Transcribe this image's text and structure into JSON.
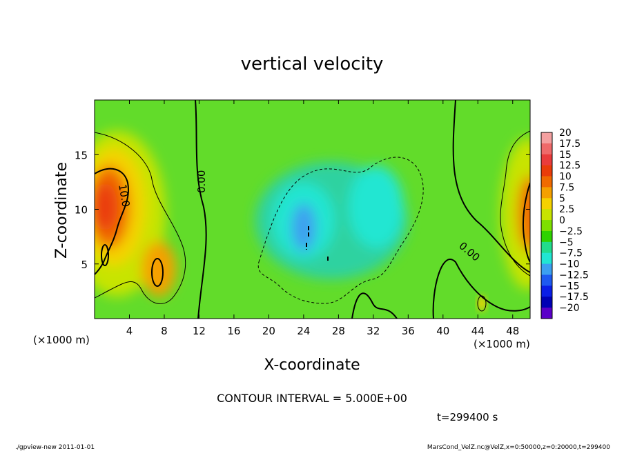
{
  "chart_data": {
    "type": "heatmap",
    "title": "vertical velocity",
    "xlabel": "X-coordinate",
    "ylabel": "Z-coordinate",
    "x_unit": "(×1000 m)",
    "y_unit": "(×1000 m)",
    "xlim": [
      0,
      50
    ],
    "ylim": [
      0,
      20
    ],
    "x_ticks": [
      "4",
      "8",
      "12",
      "16",
      "20",
      "24",
      "28",
      "32",
      "36",
      "40",
      "44",
      "48"
    ],
    "y_ticks": [
      "5",
      "10",
      "15"
    ],
    "colorbar_labels": [
      "20",
      "17.5",
      "15",
      "12.5",
      "10",
      "7.5",
      "5",
      "2.5",
      "0",
      "−2.5",
      "−5",
      "−7.5",
      "−10",
      "−12.5",
      "−15",
      "−17.5",
      "−20"
    ],
    "colorbar_colors": [
      "#f4a0a0",
      "#ef6a6a",
      "#ea3c3c",
      "#ea3c0a",
      "#f06a00",
      "#f5a000",
      "#f5d200",
      "#c8e400",
      "#7ee000",
      "#2ed200",
      "#22dc8c",
      "#22e6d2",
      "#3ca0f0",
      "#1e5af0",
      "#0a1ee6",
      "#0000b4",
      "#5a00c8"
    ],
    "contour_labels": [
      "10.0",
      "0.00",
      "0.00"
    ],
    "contour_interval": "CONTOUR INTERVAL = 5.000E+00",
    "time": "t=299400 s"
  },
  "footer": {
    "left": "./gpview-new  2011-01-01",
    "right": "MarsCond_VelZ.nc@VelZ,x=0:50000,z=0:20000,t=299400"
  }
}
